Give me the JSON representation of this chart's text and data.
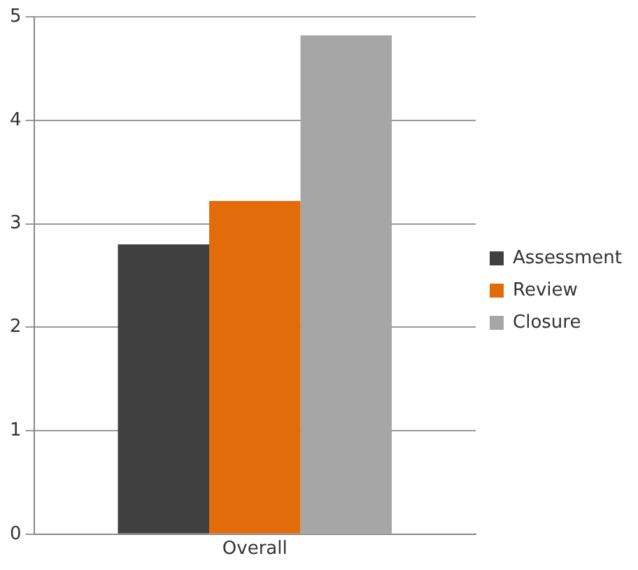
{
  "chart_data": {
    "type": "bar",
    "categories": [
      "Overall"
    ],
    "series": [
      {
        "name": "Assessment",
        "color": "#404040",
        "values": [
          2.8
        ]
      },
      {
        "name": "Review",
        "color": "#e36c0a",
        "values": [
          3.22
        ]
      },
      {
        "name": "Closure",
        "color": "#a6a6a6",
        "values": [
          4.82
        ]
      }
    ],
    "ylim": [
      0,
      5
    ],
    "yticks": [
      0,
      1,
      2,
      3,
      4,
      5
    ],
    "grid": "y",
    "legend": "right"
  }
}
